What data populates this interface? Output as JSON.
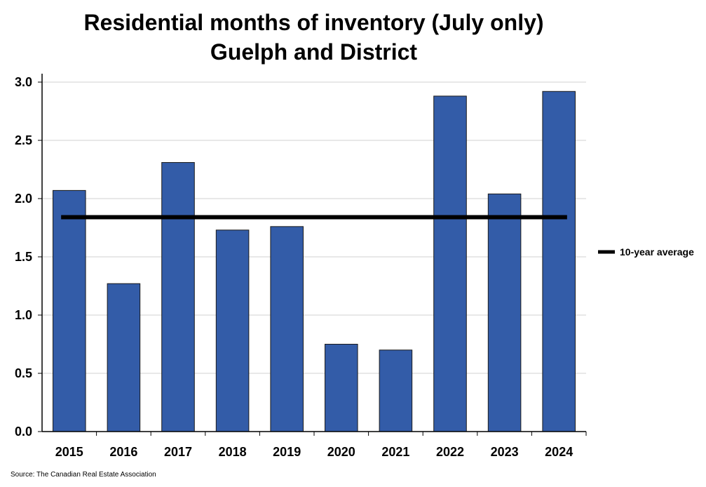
{
  "chart_data": {
    "type": "bar",
    "title": "Residential months of inventory (July only)",
    "subtitle": "Guelph and District",
    "categories": [
      "2015",
      "2016",
      "2017",
      "2018",
      "2019",
      "2020",
      "2021",
      "2022",
      "2023",
      "2024"
    ],
    "values": [
      2.07,
      1.27,
      2.31,
      1.73,
      1.76,
      0.75,
      0.7,
      2.88,
      2.04,
      2.92
    ],
    "average": {
      "label": "10-year average",
      "value": 1.84
    },
    "ylim": [
      0,
      3
    ],
    "yticks": [
      "0.0",
      "0.5",
      "1.0",
      "1.5",
      "2.0",
      "2.5",
      "3.0"
    ],
    "xlabel": "",
    "ylabel": "",
    "grid": true,
    "legend": "right",
    "colors": {
      "bar": "#335CA8",
      "bar_edge": "#1a1a1a",
      "average": "#000000",
      "grid": "#d0d0d0"
    }
  },
  "source": "Source: The Canadian Real Estate Association"
}
